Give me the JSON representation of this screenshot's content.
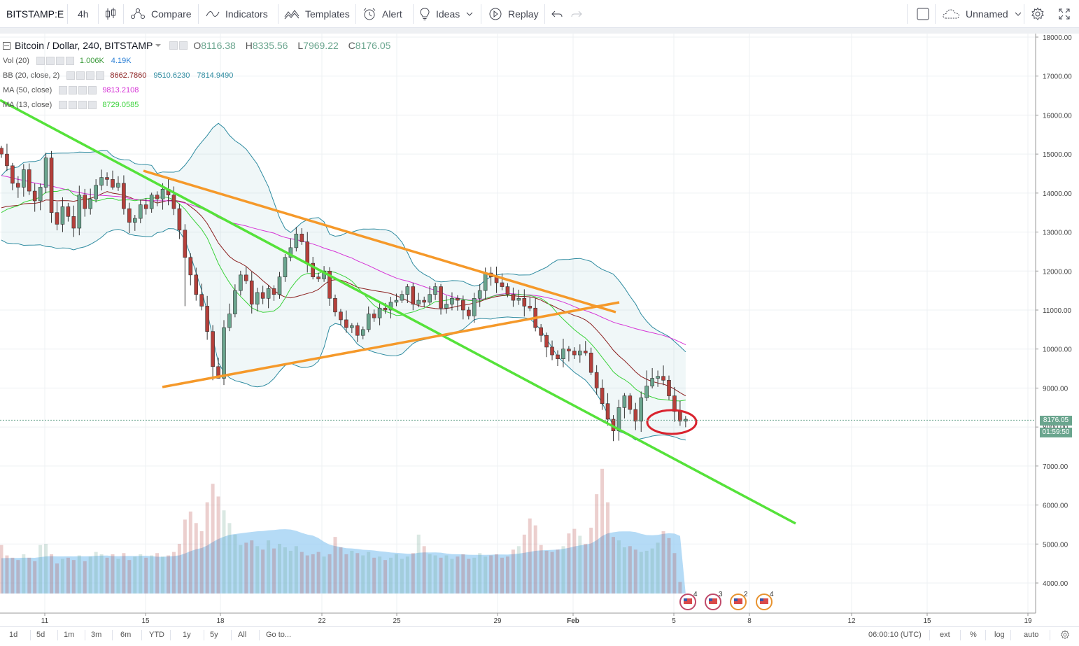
{
  "toolbar": {
    "symbol": "BITSTAMP:E",
    "interval": "4h",
    "compare_label": "Compare",
    "indicators_label": "Indicators",
    "templates_label": "Templates",
    "alert_label": "Alert",
    "ideas_label": "Ideas",
    "replay_label": "Replay",
    "layout_name": "Unnamed"
  },
  "legend": {
    "title": "Bitcoin / Dollar, 240, BITSTAMP",
    "open_label": "O",
    "open": "8116.38",
    "high_label": "H",
    "high": "8335.56",
    "low_label": "L",
    "low": "7969.22",
    "close_label": "C",
    "close": "8176.05",
    "vol_name": "Vol (20)",
    "vol_value": "1.006K",
    "vol_ma": "4.19K",
    "bb_name": "BB (20, close, 2)",
    "bb_basis": "8662.7860",
    "bb_upper": "9510.6230",
    "bb_lower": "7814.9490",
    "ma50_name": "MA (50, close)",
    "ma50_value": "9813.2108",
    "ma13_name": "MA (13, close)",
    "ma13_value": "8729.0585"
  },
  "price_scale": {
    "ticks": [
      "18000.00",
      "17000.00",
      "16000.00",
      "15000.00",
      "14000.00",
      "13000.00",
      "12000.00",
      "11000.00",
      "10000.00",
      "9000.00",
      "8000.00",
      "7000.00",
      "6000.00",
      "5000.00",
      "4000.00"
    ],
    "last_price": "8176.05",
    "countdown": "01:59:50"
  },
  "time_scale": {
    "ticks": [
      "11",
      "15",
      "18",
      "22",
      "25",
      "29",
      "Feb",
      "5",
      "8",
      "12",
      "15",
      "19"
    ]
  },
  "events": [
    "4",
    "3",
    "2",
    "4"
  ],
  "bottombar": {
    "ranges": [
      "1d",
      "5d",
      "1m",
      "3m",
      "6m",
      "YTD",
      "1y",
      "5y",
      "All"
    ],
    "goto": "Go to...",
    "clock": "06:00:10 (UTC)",
    "ext": "ext",
    "percent": "%",
    "log": "log",
    "auto": "auto"
  },
  "colors": {
    "up": "#6aa58e",
    "down": "#b5403b",
    "bb_band": "#2e8ba0",
    "bb_basis": "#8b1e1e",
    "ma50": "#d633d6",
    "ma13": "#3bd23b",
    "trend_green": "#55e23a",
    "trend_orange": "#f5992a",
    "highlight_circle": "#d9232e",
    "volume_ma": "#9ccff3"
  },
  "chart_data": {
    "type": "candlestick",
    "title": "Bitcoin / Dollar, 240, BITSTAMP",
    "ylim": [
      3400,
      18200
    ],
    "x_ticks": [
      "11",
      "15",
      "18",
      "22",
      "25",
      "29",
      "Feb",
      "5",
      "8",
      "12",
      "15",
      "19"
    ],
    "grid": true,
    "close": [
      15000,
      14700,
      14250,
      14150,
      14600,
      14050,
      13800,
      14150,
      14900,
      13500,
      13200,
      13650,
      13400,
      13100,
      13950,
      13600,
      13850,
      14200,
      14400,
      14350,
      14150,
      14250,
      13600,
      13250,
      13350,
      13700,
      13600,
      13950,
      13850,
      14100,
      13950,
      13600,
      13050,
      12350,
      11900,
      11400,
      11100,
      10450,
      9550,
      9250,
      10550,
      10900,
      11500,
      11900,
      11750,
      11150,
      11450,
      11300,
      11550,
      11400,
      11850,
      12350,
      12600,
      12950,
      12750,
      12200,
      11850,
      11800,
      12000,
      11300,
      10950,
      10750,
      10550,
      10600,
      10350,
      10500,
      10900,
      10800,
      11050,
      11000,
      11200,
      11250,
      11400,
      11600,
      11150,
      11250,
      11200,
      11400,
      11600,
      11050,
      11150,
      11300,
      11250,
      11000,
      10850,
      11300,
      11500,
      11950,
      11850,
      11700,
      11600,
      11400,
      11250,
      11300,
      11100,
      11050,
      10550,
      10350,
      10050,
      9850,
      9750,
      10000,
      9950,
      9850,
      9950,
      9900,
      9400,
      9000,
      8600,
      8200,
      7900,
      8500,
      8800,
      8450,
      8150,
      8750,
      9050,
      9250,
      9300,
      9200,
      8800,
      8400,
      8150,
      8200
    ],
    "volume_k": [
      4.2,
      3.3,
      3.1,
      2.9,
      3.4,
      3.1,
      2.8,
      4.2,
      4.3,
      3.4,
      2.6,
      3.0,
      3.1,
      2.9,
      3.3,
      2.8,
      3.2,
      3.6,
      3.4,
      3.1,
      3.4,
      3.0,
      3.5,
      2.9,
      3.2,
      3.4,
      3.1,
      3.3,
      3.5,
      3.2,
      3.3,
      3.6,
      4.3,
      6.4,
      7.1,
      6.1,
      5.4,
      7.9,
      9.5,
      8.4,
      7.2,
      6.1,
      5.1,
      4.2,
      4.4,
      4.6,
      4.1,
      3.8,
      4.6,
      3.9,
      4.3,
      4.0,
      3.7,
      4.1,
      3.6,
      3.3,
      3.4,
      3.6,
      3.2,
      3.4,
      4.9,
      4.0,
      3.4,
      3.7,
      3.5,
      3.3,
      3.6,
      3.1,
      3.2,
      2.9,
      3.1,
      3.4,
      3.0,
      3.2,
      3.5,
      5.1,
      4.1,
      3.4,
      3.3,
      3.1,
      3.3,
      3.0,
      3.2,
      3.4,
      3.0,
      3.1,
      3.5,
      3.2,
      3.3,
      3.4,
      3.1,
      3.2,
      3.8,
      4.1,
      5.1,
      6.5,
      5.9,
      4.2,
      3.7,
      3.6,
      3.8,
      4.1,
      5.2,
      5.6,
      5.0,
      4.3,
      5.7,
      8.6,
      10.8,
      7.9,
      4.9,
      4.6,
      4.0,
      4.1,
      3.8,
      3.6,
      3.7,
      3.9,
      4.4,
      5.4,
      4.8,
      3.5,
      1.0
    ],
    "series": [
      {
        "name": "MA (50, close)",
        "last": 9813.2108
      },
      {
        "name": "MA (13, close)",
        "last": 8729.0585
      },
      {
        "name": "BB (20, close, 2)",
        "basis": 8662.786,
        "upper": 9510.623,
        "lower": 7814.949
      },
      {
        "name": "Vol (20)",
        "last": 1006,
        "ma": 4190
      }
    ],
    "trendlines": [
      {
        "color": "green",
        "from": {
          "x": "Jan 9",
          "y": 16200
        },
        "to": {
          "x": "Feb 10",
          "y": 5500
        }
      },
      {
        "color": "orange",
        "from": {
          "x": "Jan 15",
          "y": 14600
        },
        "to": {
          "x": "Feb 2",
          "y": 10900
        }
      },
      {
        "color": "orange",
        "from": {
          "x": "Jan 16",
          "y": 9000
        },
        "to": {
          "x": "Feb 2",
          "y": 11200
        }
      }
    ]
  }
}
